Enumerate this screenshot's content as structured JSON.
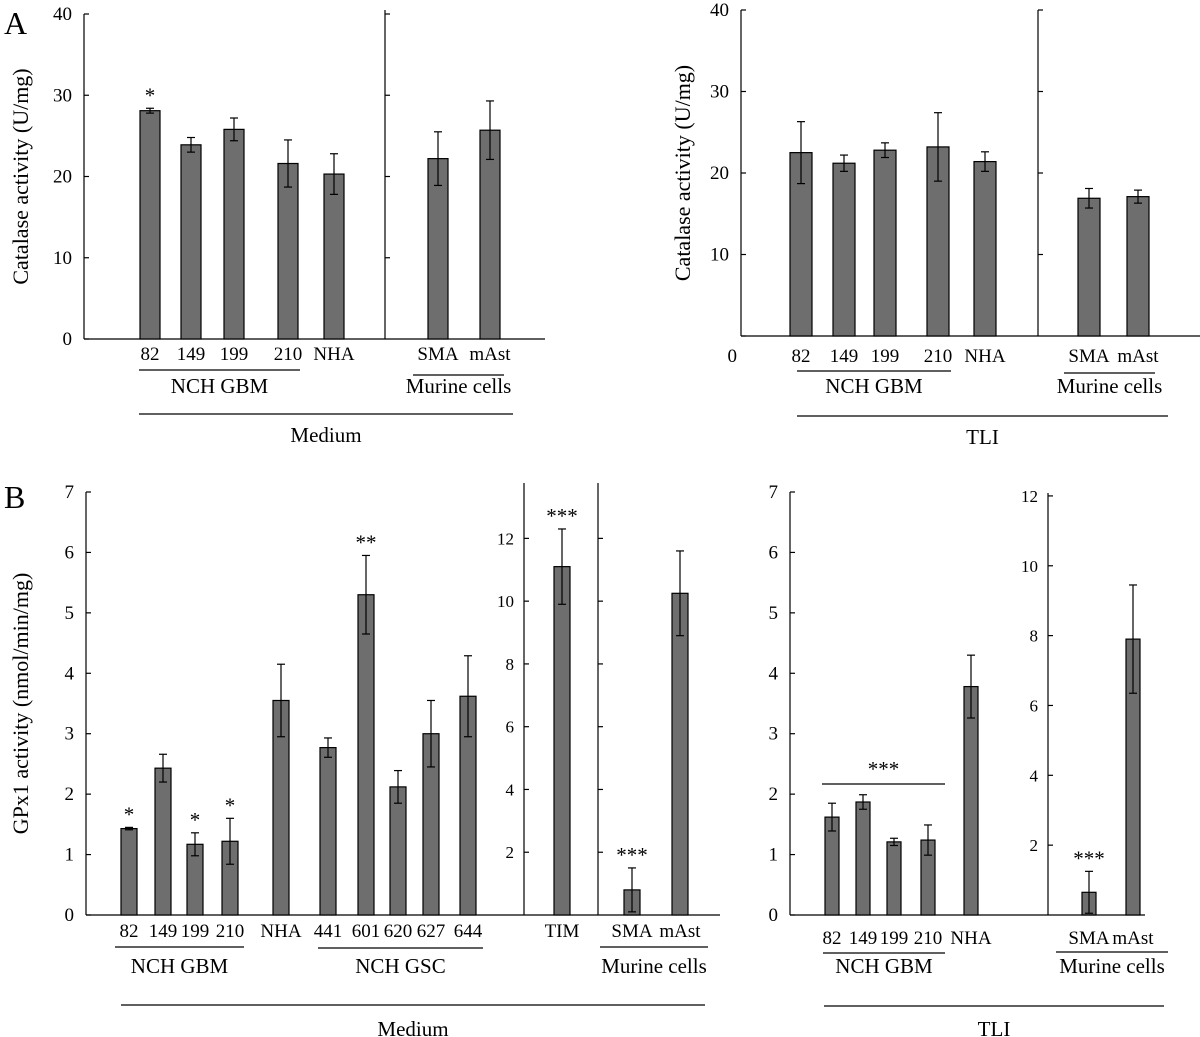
{
  "panel_labels": {
    "a": "A",
    "b": "B"
  },
  "colors": {
    "bar": "#6e6e6e",
    "stroke": "#000000"
  },
  "chart_data": [
    {
      "id": "A-Medium",
      "type": "bar",
      "ylabel": "Catalase activity (U/mg)",
      "ylim": [
        0,
        40
      ],
      "yticks": [
        0,
        10,
        20,
        30,
        40
      ],
      "categories": [
        "82",
        "149",
        "199",
        "210",
        "NHA",
        "SMA",
        "mAst"
      ],
      "values": [
        28.1,
        23.9,
        25.8,
        21.6,
        20.3,
        22.2,
        25.7
      ],
      "errors": [
        0.3,
        0.9,
        1.4,
        2.9,
        2.5,
        3.3,
        3.6
      ],
      "annotations": [
        "*",
        "",
        "",
        "",
        "",
        "",
        ""
      ],
      "groups": [
        {
          "label": "NCH GBM",
          "members": [
            "82",
            "149",
            "199",
            "210"
          ]
        },
        {
          "label": "Murine cells",
          "members": [
            "SMA",
            "mAst"
          ]
        }
      ],
      "condition": "Medium"
    },
    {
      "id": "A-TLI",
      "type": "bar",
      "ylabel": "Catalase activity (U/mg)",
      "ylim": [
        0,
        40
      ],
      "yticks": [
        0,
        10,
        20,
        30,
        40
      ],
      "categories": [
        "82",
        "149",
        "199",
        "210",
        "NHA",
        "SMA",
        "mAst"
      ],
      "values": [
        22.5,
        21.2,
        22.8,
        23.2,
        21.4,
        16.9,
        17.1
      ],
      "errors": [
        3.8,
        1.0,
        0.9,
        4.2,
        1.2,
        1.2,
        0.8
      ],
      "annotations": [
        "",
        "",
        "",
        "",
        "",
        "",
        ""
      ],
      "groups": [
        {
          "label": "NCH GBM",
          "members": [
            "82",
            "149",
            "199",
            "210"
          ]
        },
        {
          "label": "Murine cells",
          "members": [
            "SMA",
            "mAst"
          ]
        }
      ],
      "condition": "TLI"
    },
    {
      "id": "B-Medium",
      "type": "bar",
      "ylabel": "GPx1 activity (nmol/min/mg)",
      "ylim": [
        0,
        7
      ],
      "yticks": [
        0,
        1,
        2,
        3,
        4,
        5,
        6,
        7
      ],
      "ylim_right": [
        0,
        13
      ],
      "yticks_right": [
        2,
        4,
        6,
        8,
        10,
        12
      ],
      "categories": [
        "82",
        "149",
        "199",
        "210",
        "NHA",
        "441",
        "601",
        "620",
        "627",
        "644",
        "TIM",
        "SMA",
        "mAst"
      ],
      "values": [
        1.43,
        2.43,
        1.17,
        1.22,
        3.55,
        2.77,
        5.3,
        2.12,
        3.0,
        3.62,
        11.1,
        0.8,
        10.25
      ],
      "errors": [
        0.02,
        0.23,
        0.19,
        0.38,
        0.6,
        0.16,
        0.65,
        0.27,
        0.55,
        0.67,
        1.2,
        0.7,
        1.35
      ],
      "axis": [
        "left",
        "left",
        "left",
        "left",
        "left",
        "left",
        "left",
        "left",
        "left",
        "left",
        "right",
        "right",
        "right"
      ],
      "annotations": [
        "*",
        "",
        "*",
        "*",
        "",
        "",
        "**",
        "",
        "",
        "",
        "***",
        "***",
        ""
      ],
      "groups": [
        {
          "label": "NCH GBM",
          "members": [
            "82",
            "149",
            "199",
            "210"
          ]
        },
        {
          "label": "NCH GSC",
          "members": [
            "441",
            "601",
            "620",
            "627",
            "644"
          ]
        },
        {
          "label": "Murine cells",
          "members": [
            "SMA",
            "mAst"
          ]
        }
      ],
      "condition": "Medium"
    },
    {
      "id": "B-TLI",
      "type": "bar",
      "ylim": [
        0,
        7
      ],
      "yticks": [
        0,
        1,
        2,
        3,
        4,
        5,
        6,
        7
      ],
      "ylim_right": [
        0,
        13
      ],
      "yticks_right": [
        2,
        4,
        6,
        8,
        10,
        12
      ],
      "categories": [
        "82",
        "149",
        "199",
        "210",
        "NHA",
        "SMA",
        "mAst"
      ],
      "values": [
        1.62,
        1.87,
        1.21,
        1.24,
        3.78,
        0.65,
        7.9
      ],
      "errors": [
        0.23,
        0.12,
        0.06,
        0.25,
        0.52,
        0.6,
        1.55
      ],
      "axis": [
        "left",
        "left",
        "left",
        "left",
        "left",
        "right",
        "right"
      ],
      "annotations": [
        "",
        "",
        "",
        "",
        "",
        "***",
        ""
      ],
      "bracket_annotation": {
        "label": "***",
        "members": [
          "82",
          "149",
          "199",
          "210"
        ]
      },
      "groups": [
        {
          "label": "NCH GBM",
          "members": [
            "82",
            "149",
            "199",
            "210"
          ]
        },
        {
          "label": "Murine cells",
          "members": [
            "SMA",
            "mAst"
          ]
        }
      ],
      "condition": "TLI"
    }
  ]
}
